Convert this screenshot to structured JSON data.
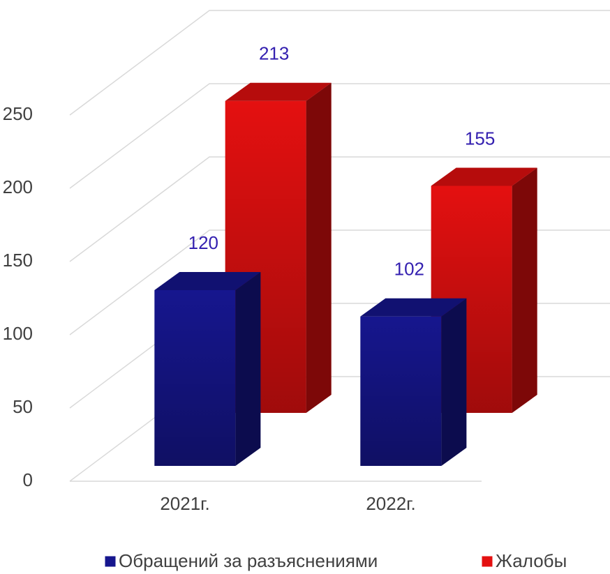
{
  "chart_data": {
    "type": "bar3d",
    "categories": [
      "2021г.",
      "2022г."
    ],
    "series": [
      {
        "name": "Обращений за разъяснениями",
        "color": "#16168e",
        "values": [
          120,
          102
        ]
      },
      {
        "name": "Жалобы",
        "color": "#e41010",
        "values": [
          213,
          155
        ]
      }
    ],
    "ylim": [
      0,
      250
    ],
    "yticks": [
      0,
      50,
      100,
      150,
      200,
      250
    ],
    "grid": true,
    "legend": "bottom"
  }
}
